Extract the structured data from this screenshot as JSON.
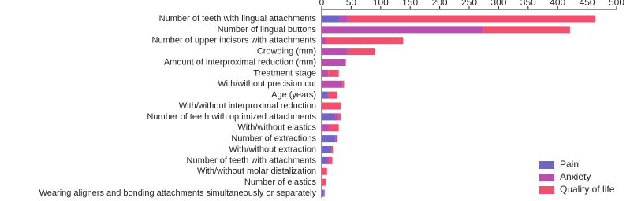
{
  "chart_data": {
    "type": "stacked-bar-horizontal",
    "categories": [
      "Number of teeth with lingual attachments",
      "Number of lingual buttons",
      "Number of upper incisors with attachments",
      "Crowding (mm)",
      "Amount of interproximal reduction (mm)",
      "Treatment stage",
      "With/without precision cut",
      "Age (years)",
      "With/without interproximal reduction",
      "Number of teeth with optimized attachments",
      "With/without elastics",
      "Number of extractions",
      "With/without extraction",
      "Number of teeth with attachments",
      "With/without molar distalization",
      "Number of elastics",
      "Wearing aligners and bonding attachments simultaneously or separately"
    ],
    "series": [
      {
        "name": "Pain",
        "color": "#6f66c2",
        "values": [
          30,
          0,
          0,
          0,
          0,
          0,
          0,
          10,
          0,
          21,
          0,
          23,
          16,
          8,
          0,
          0,
          3
        ]
      },
      {
        "name": "Anxiety",
        "color": "#b84fae",
        "values": [
          14,
          273,
          8,
          44,
          41,
          11,
          35,
          0,
          0,
          7,
          12,
          4,
          0,
          4,
          0,
          0,
          2
        ]
      },
      {
        "name": "Quality of life",
        "color": "#f0506e",
        "values": [
          420,
          148,
          130,
          46,
          0,
          18,
          3,
          16,
          32,
          4,
          17,
          0,
          3,
          6,
          9,
          8,
          0
        ]
      }
    ],
    "xlim": [
      0,
      500
    ],
    "xticks": [
      0,
      50,
      100,
      150,
      200,
      250,
      300,
      350,
      400,
      450,
      500
    ],
    "legend": "bottom-right"
  }
}
